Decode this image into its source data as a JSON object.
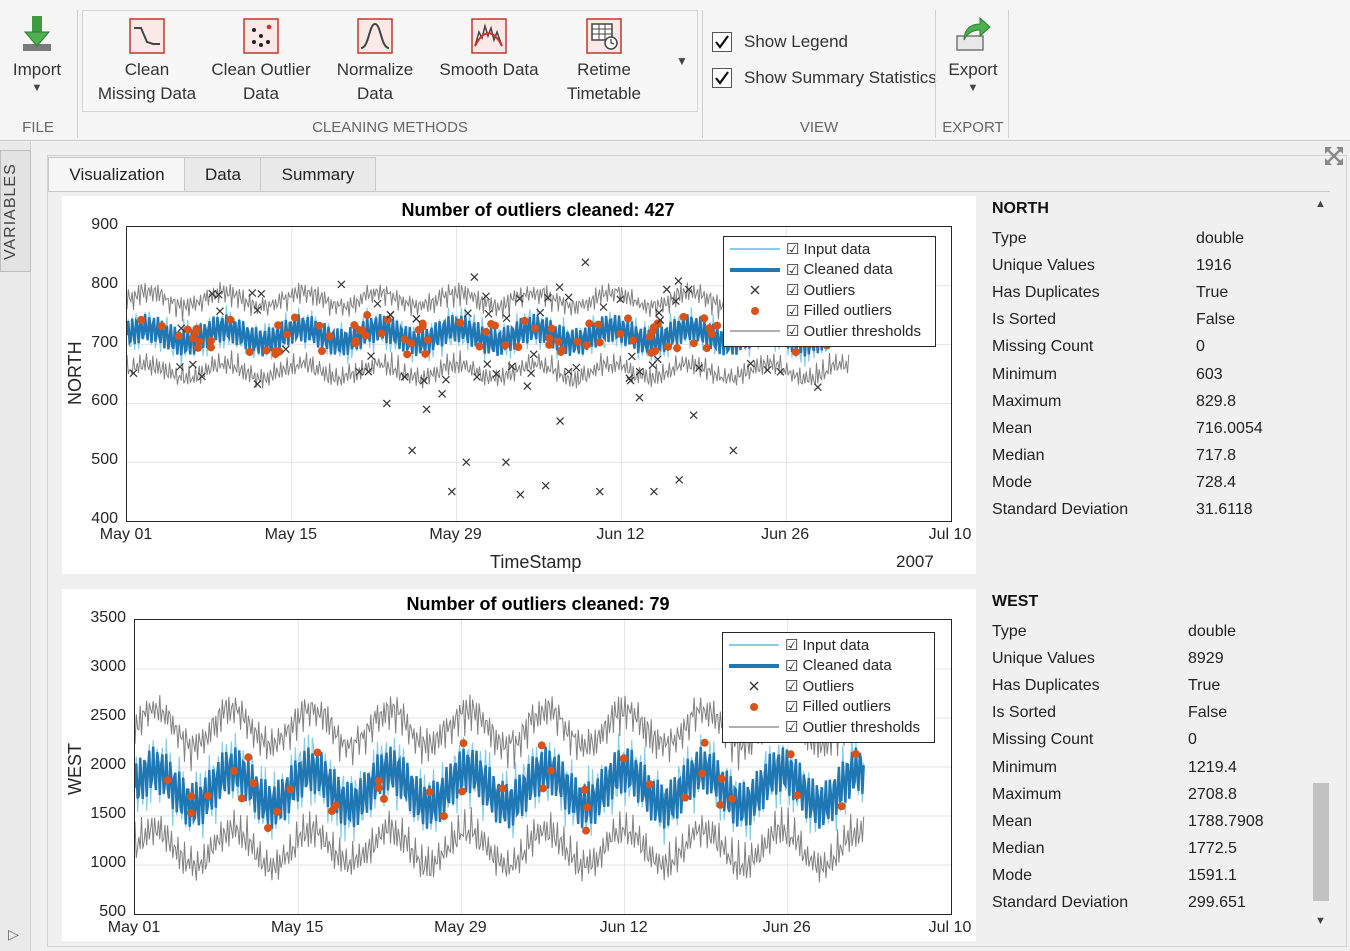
{
  "toolstrip": {
    "file": {
      "import_label": "Import",
      "group": "FILE"
    },
    "cleaning": {
      "group": "CLEANING METHODS",
      "buttons": [
        {
          "line1": "Clean",
          "line2": "Missing Data"
        },
        {
          "line1": "Clean Outlier",
          "line2": "Data"
        },
        {
          "line1": "Normalize",
          "line2": "Data"
        },
        {
          "line1": "Smooth Data",
          "line2": ""
        },
        {
          "line1": "Retime",
          "line2": "Timetable"
        }
      ]
    },
    "view": {
      "group": "VIEW",
      "show_legend": "Show Legend",
      "show_summary": "Show Summary Statistics"
    },
    "export": {
      "label": "Export",
      "group": "EXPORT"
    }
  },
  "sidebar": {
    "variables_label": "VARIABLES"
  },
  "tabs": [
    {
      "label": "Visualization"
    },
    {
      "label": "Data"
    },
    {
      "label": "Summary"
    }
  ],
  "legend_items": [
    "Input data",
    "Cleaned data",
    "Outliers",
    "Filled outliers",
    "Outlier thresholds"
  ],
  "colors": {
    "input": "#87cde8",
    "cleaned": "#1f77b4",
    "filled": "#d95319",
    "threshold": "#808080",
    "outlier": "#333333"
  },
  "chart_data": [
    {
      "type": "line",
      "title": "Number of outliers cleaned: 427",
      "ylabel": "NORTH",
      "xlabel": "TimeStamp",
      "year_label": "2007",
      "ylim": [
        400,
        900
      ],
      "yticks": [
        "900",
        "800",
        "700",
        "600",
        "500",
        "400"
      ],
      "xticks": [
        "May 01",
        "May 15",
        "May 29",
        "Jun 12",
        "Jun 26",
        "Jul 10"
      ],
      "grid": true,
      "legend": "top-right",
      "series": [
        {
          "name": "Input data",
          "baseline": 716,
          "amplitude": 30
        },
        {
          "name": "Cleaned data",
          "baseline": 716,
          "amplitude": 25
        },
        {
          "name": "Outliers",
          "values": [
            600,
            445,
            450,
            590,
            570,
            580,
            500,
            450,
            520,
            500,
            610,
            520,
            460,
            470,
            450,
            840
          ]
        },
        {
          "name": "Filled outliers"
        },
        {
          "name": "Outlier thresholds"
        }
      ]
    },
    {
      "type": "line",
      "title": "Number of outliers cleaned: 79",
      "ylabel": "WEST",
      "xlabel": "",
      "ylim": [
        500,
        3500
      ],
      "yticks": [
        "3500",
        "3000",
        "2500",
        "2000",
        "1500",
        "1000",
        "500"
      ],
      "xticks": [
        "May 01",
        "May 15",
        "May 29",
        "Jun 12",
        "Jun 26",
        "Jul 10"
      ],
      "grid": true,
      "legend": "top-right",
      "series": [
        {
          "name": "Input data",
          "baseline": 1789,
          "amplitude": 300
        },
        {
          "name": "Cleaned data",
          "baseline": 1789,
          "amplitude": 280
        },
        {
          "name": "Outliers"
        },
        {
          "name": "Filled outliers"
        },
        {
          "name": "Outlier thresholds"
        }
      ]
    }
  ],
  "stats": [
    {
      "title": "NORTH",
      "rows": [
        {
          "label": "Type",
          "value": "double"
        },
        {
          "label": "Unique Values",
          "value": "1916"
        },
        {
          "label": "Has Duplicates",
          "value": "True"
        },
        {
          "label": "Is Sorted",
          "value": "False"
        },
        {
          "label": "Missing Count",
          "value": "0"
        },
        {
          "label": "Minimum",
          "value": "603"
        },
        {
          "label": "Maximum",
          "value": "829.8"
        },
        {
          "label": "Mean",
          "value": "716.0054"
        },
        {
          "label": "Median",
          "value": "717.8"
        },
        {
          "label": "Mode",
          "value": "728.4"
        },
        {
          "label": "Standard Deviation",
          "value": "31.6118"
        }
      ]
    },
    {
      "title": "WEST",
      "rows": [
        {
          "label": "Type",
          "value": "double"
        },
        {
          "label": "Unique Values",
          "value": "8929"
        },
        {
          "label": "Has Duplicates",
          "value": "True"
        },
        {
          "label": "Is Sorted",
          "value": "False"
        },
        {
          "label": "Missing Count",
          "value": "0"
        },
        {
          "label": "Minimum",
          "value": "1219.4"
        },
        {
          "label": "Maximum",
          "value": "2708.8"
        },
        {
          "label": "Mean",
          "value": "1788.7908"
        },
        {
          "label": "Median",
          "value": "1772.5"
        },
        {
          "label": "Mode",
          "value": "1591.1"
        },
        {
          "label": "Standard Deviation",
          "value": "299.651"
        }
      ]
    }
  ]
}
